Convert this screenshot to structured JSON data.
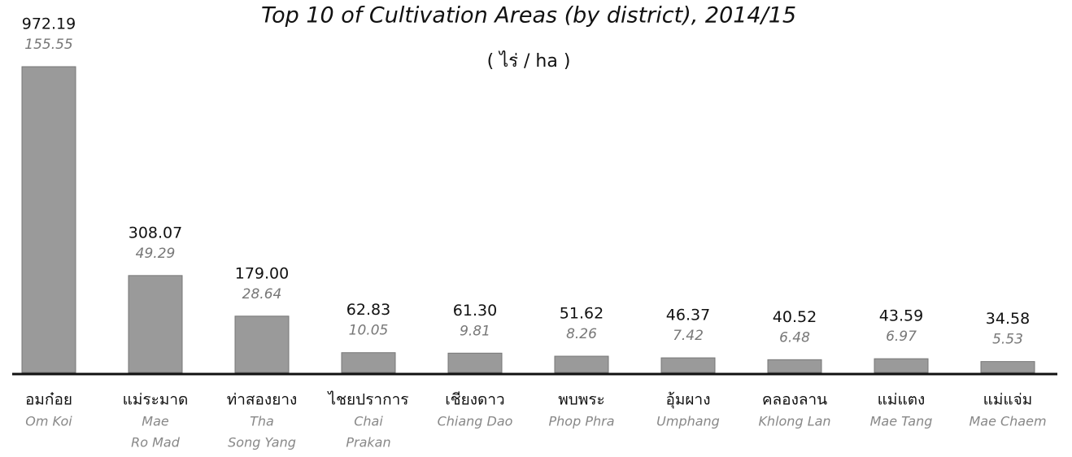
{
  "chart_data": {
    "type": "bar",
    "title": "Top 10 of Cultivation Areas (by district), 2014/15",
    "subtitle": "( ไร่ / ha )",
    "categories": [
      "อมก๋อย",
      "แม่ระมาด",
      "ท่าสองยาง",
      "ไชยปราการ",
      "เชียงดาว",
      "พบพระ",
      "อุ้มผาง",
      "คลองลาน",
      "แม่แตง",
      "แม่แจ่ม"
    ],
    "categories_en": [
      [
        "Om Koi"
      ],
      [
        "Mae",
        "Ro Mad"
      ],
      [
        "Tha",
        "Song Yang"
      ],
      [
        "Chai",
        "Prakan"
      ],
      [
        "Chiang Dao"
      ],
      [
        "Phop Phra"
      ],
      [
        "Umphang"
      ],
      [
        "Khlong Lan"
      ],
      [
        "Mae Tang"
      ],
      [
        "Mae Chaem"
      ]
    ],
    "series": [
      {
        "color": "#9a9a9a",
        "values": [
          972.19,
          308.07,
          179.0,
          62.83,
          61.3,
          51.62,
          46.37,
          40.52,
          43.59,
          34.58
        ],
        "value_labels": [
          "972.19",
          "308.07",
          "179.00",
          "62.83",
          "61.30",
          "51.62",
          "46.37",
          "40.52",
          "43.59",
          "34.58"
        ]
      },
      {
        "values": [
          155.55,
          49.29,
          28.64,
          10.05,
          9.81,
          8.26,
          7.42,
          6.48,
          6.97,
          5.53
        ],
        "value_labels": [
          "155.55",
          "49.29",
          "28.64",
          "10.05",
          "9.81",
          "8.26",
          "7.42",
          "6.48",
          "6.97",
          "5.53"
        ]
      }
    ]
  }
}
